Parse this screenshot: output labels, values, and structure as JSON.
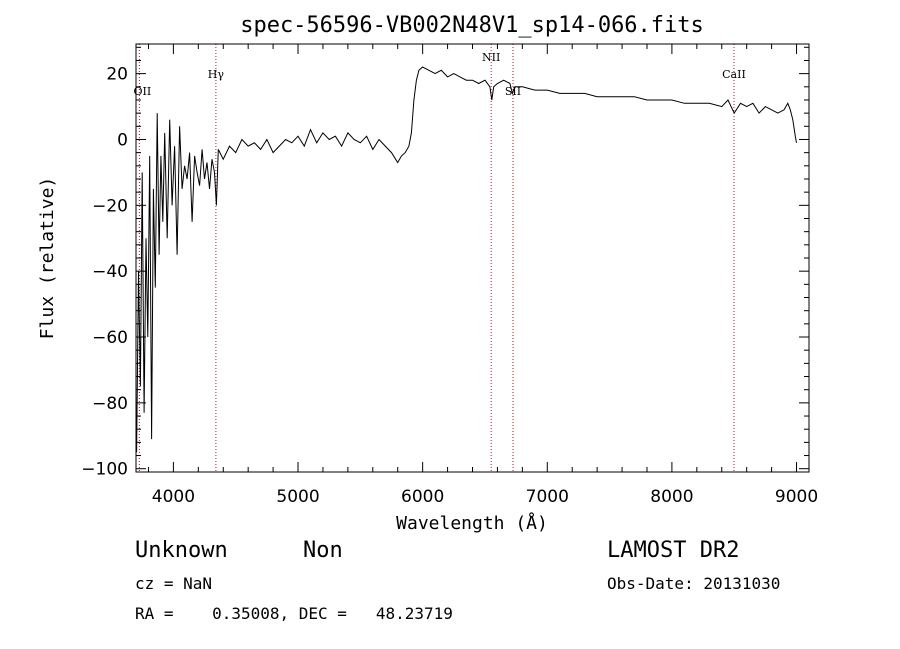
{
  "chart_data": {
    "type": "line",
    "title": "spec-56596-VB002N48V1_sp14-066.fits",
    "xlabel": "Wavelength (Å)",
    "ylabel": "Flux (relative)",
    "xlim": [
      3700,
      9100
    ],
    "ylim": [
      -101,
      29
    ],
    "xticks": [
      4000,
      5000,
      6000,
      7000,
      8000,
      9000
    ],
    "yticks": [
      -100,
      -80,
      -60,
      -40,
      -20,
      0,
      20
    ],
    "grid": false,
    "lines": [
      {
        "label": "OII",
        "wavelength": 3727
      },
      {
        "label": "Hγ",
        "wavelength": 4341
      },
      {
        "label": "NII",
        "wavelength": 6550
      },
      {
        "label": "SII",
        "wavelength": 6725
      },
      {
        "label": "CaII",
        "wavelength": 8498
      }
    ],
    "series": [
      {
        "x": [
          3705,
          3720,
          3735,
          3750,
          3765,
          3780,
          3795,
          3810,
          3825,
          3840,
          3855,
          3870,
          3885,
          3900,
          3915,
          3930,
          3950,
          3970,
          3990,
          4010,
          4030,
          4050,
          4070,
          4090,
          4110,
          4130,
          4150,
          4170,
          4190,
          4210,
          4230,
          4250,
          4270,
          4290,
          4310,
          4330,
          4345,
          4360,
          4400,
          4450,
          4500,
          4550,
          4600,
          4650,
          4700,
          4750,
          4800,
          4850,
          4900,
          4950,
          5000,
          5050,
          5100,
          5150,
          5200,
          5250,
          5300,
          5350,
          5400,
          5450,
          5500,
          5550,
          5600,
          5650,
          5700,
          5750,
          5800,
          5830,
          5860,
          5890,
          5910,
          5930,
          5950,
          5970,
          6000,
          6050,
          6100,
          6150,
          6200,
          6250,
          6300,
          6350,
          6400,
          6450,
          6500,
          6540,
          6555,
          6570,
          6600,
          6650,
          6700,
          6720,
          6740,
          6800,
          6900,
          7000,
          7100,
          7200,
          7300,
          7400,
          7500,
          7600,
          7700,
          7800,
          7900,
          8000,
          8100,
          8200,
          8300,
          8400,
          8450,
          8500,
          8550,
          8600,
          8650,
          8700,
          8750,
          8800,
          8850,
          8900,
          8930,
          8950,
          8970,
          8990,
          9000
        ],
        "y": [
          -95,
          -40,
          -75,
          -10,
          -83,
          -30,
          -60,
          -5,
          -91,
          -15,
          -45,
          8,
          -35,
          -5,
          -25,
          2,
          -30,
          6,
          -20,
          -2,
          -35,
          4,
          -15,
          -8,
          -12,
          -4,
          -25,
          -5,
          -10,
          -14,
          -3,
          -12,
          -7,
          -15,
          -6,
          -10,
          -20,
          -3,
          -6,
          -2,
          -4,
          0,
          -2,
          -1,
          -3,
          0,
          -4,
          -2,
          0,
          -1,
          1,
          -2,
          3,
          -1,
          2,
          0,
          1,
          -2,
          2,
          0,
          -1,
          1,
          -3,
          0,
          -2,
          -4,
          -7,
          -5,
          -4,
          -2,
          2,
          12,
          18,
          21,
          22,
          21,
          20,
          21,
          19,
          20,
          19,
          18,
          18,
          17,
          18,
          16,
          12,
          16,
          17,
          18,
          17,
          14,
          16,
          16,
          15,
          15,
          14,
          14,
          14,
          13,
          13,
          13,
          13,
          12,
          12,
          12,
          11,
          11,
          11,
          10,
          12,
          8,
          11,
          10,
          11,
          8,
          10,
          9,
          8,
          9,
          11,
          9,
          6,
          1,
          -1
        ]
      }
    ]
  },
  "footer": {
    "object_class": "Unknown",
    "subclass": "Non",
    "survey": "LAMOST DR2",
    "redshift": "cz = NaN",
    "obs_date": "Obs-Date: 20131030",
    "coords": "RA =    0.35008, DEC =   48.23719"
  }
}
